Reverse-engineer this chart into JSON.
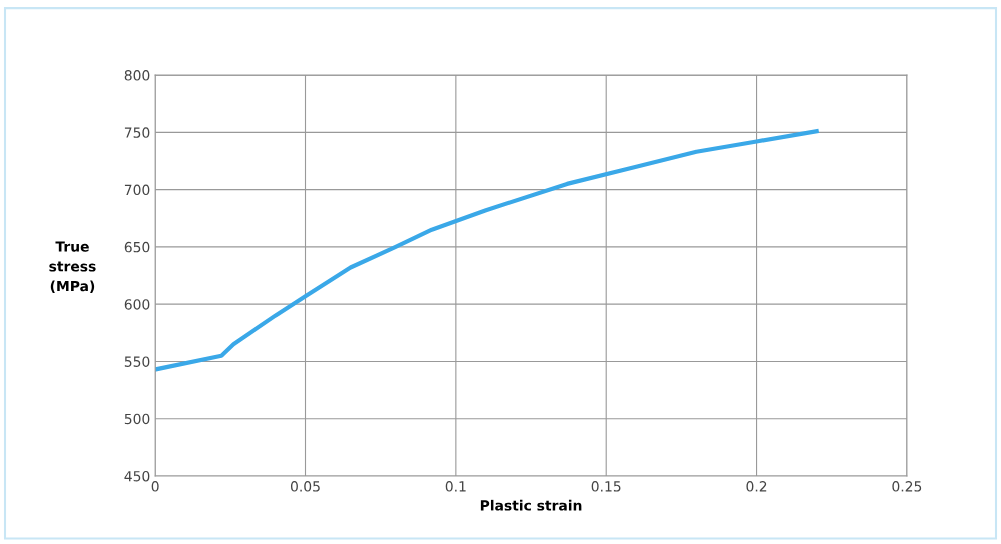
{
  "chart_data": {
    "type": "line",
    "xlabel": "Plastic strain",
    "ylabel": "True\nstress\n(MPa)",
    "x": [
      0,
      0.022,
      0.026,
      0.04,
      0.05,
      0.065,
      0.08,
      0.092,
      0.11,
      0.137,
      0.16,
      0.18,
      0.2,
      0.22
    ],
    "series": [
      {
        "color": "#3aa8e8",
        "values": [
          543,
          555,
          565,
          590,
          607,
          632,
          650,
          665,
          682,
          705,
          720,
          733,
          742,
          751
        ]
      }
    ],
    "xlim": [
      0,
      0.25
    ],
    "xticks": [
      0,
      0.05,
      0.1,
      0.15,
      0.2,
      0.25
    ],
    "ylim": [
      450,
      800
    ],
    "yticks": [
      450,
      500,
      550,
      600,
      650,
      700,
      750,
      800
    ],
    "grid": true,
    "marker": "none",
    "line_style": "solid"
  }
}
